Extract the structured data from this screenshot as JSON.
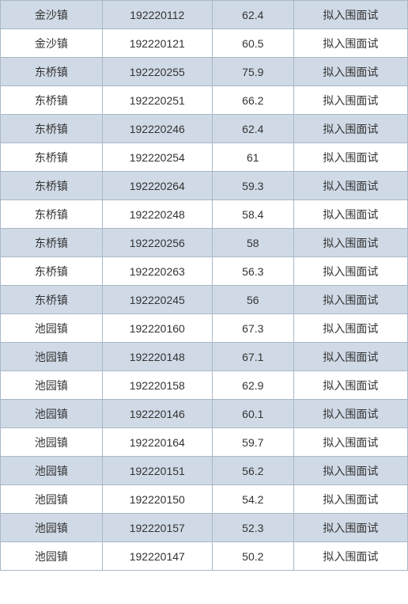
{
  "table": {
    "colors": {
      "odd_bg": "#d0dae6",
      "even_bg": "#ffffff",
      "border": "#a9b8c8",
      "text": "#333333"
    },
    "columns": [
      {
        "key": "town",
        "width_pct": 25
      },
      {
        "key": "id",
        "width_pct": 27
      },
      {
        "key": "score",
        "width_pct": 20
      },
      {
        "key": "status",
        "width_pct": 28
      }
    ],
    "rows": [
      {
        "town": "金沙镇",
        "id": "192220112",
        "score": "62.4",
        "status": "拟入围面试"
      },
      {
        "town": "金沙镇",
        "id": "192220121",
        "score": "60.5",
        "status": "拟入围面试"
      },
      {
        "town": "东桥镇",
        "id": "192220255",
        "score": "75.9",
        "status": "拟入围面试"
      },
      {
        "town": "东桥镇",
        "id": "192220251",
        "score": "66.2",
        "status": "拟入围面试"
      },
      {
        "town": "东桥镇",
        "id": "192220246",
        "score": "62.4",
        "status": "拟入围面试"
      },
      {
        "town": "东桥镇",
        "id": "192220254",
        "score": "61",
        "status": "拟入围面试"
      },
      {
        "town": "东桥镇",
        "id": "192220264",
        "score": "59.3",
        "status": "拟入围面试"
      },
      {
        "town": "东桥镇",
        "id": "192220248",
        "score": "58.4",
        "status": "拟入围面试"
      },
      {
        "town": "东桥镇",
        "id": "192220256",
        "score": "58",
        "status": "拟入围面试"
      },
      {
        "town": "东桥镇",
        "id": "192220263",
        "score": "56.3",
        "status": "拟入围面试"
      },
      {
        "town": "东桥镇",
        "id": "192220245",
        "score": "56",
        "status": "拟入围面试"
      },
      {
        "town": "池园镇",
        "id": "192220160",
        "score": "67.3",
        "status": "拟入围面试"
      },
      {
        "town": "池园镇",
        "id": "192220148",
        "score": "67.1",
        "status": "拟入围面试"
      },
      {
        "town": "池园镇",
        "id": "192220158",
        "score": "62.9",
        "status": "拟入围面试"
      },
      {
        "town": "池园镇",
        "id": "192220146",
        "score": "60.1",
        "status": "拟入围面试"
      },
      {
        "town": "池园镇",
        "id": "192220164",
        "score": "59.7",
        "status": "拟入围面试"
      },
      {
        "town": "池园镇",
        "id": "192220151",
        "score": "56.2",
        "status": "拟入围面试"
      },
      {
        "town": "池园镇",
        "id": "192220150",
        "score": "54.2",
        "status": "拟入围面试"
      },
      {
        "town": "池园镇",
        "id": "192220157",
        "score": "52.3",
        "status": "拟入围面试"
      },
      {
        "town": "池园镇",
        "id": "192220147",
        "score": "50.2",
        "status": "拟入围面试"
      }
    ]
  }
}
